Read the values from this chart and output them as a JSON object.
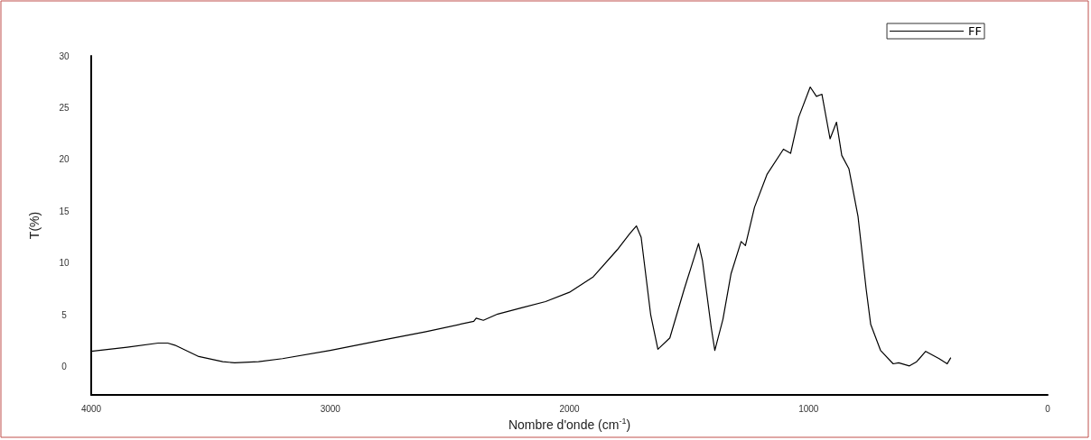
{
  "chart_data": {
    "type": "line",
    "xlabel": "Nombre d'onde (cm$^{-1}$)",
    "ylabel": "T(%)",
    "xlim": [
      4000,
      0
    ],
    "xticks": [
      4000,
      3000,
      2000,
      1000,
      0
    ],
    "ylim": [
      -2.7,
      30
    ],
    "yticks": [
      0,
      5,
      10,
      15,
      20,
      25,
      30
    ],
    "grid": false,
    "legend": "top right",
    "marker": "none",
    "line_style": "solid",
    "series": [
      {
        "name": "FF",
        "color": "#000000",
        "x": [
          4000,
          3850,
          3720,
          3680,
          3650,
          3550,
          3450,
          3400,
          3300,
          3200,
          3000,
          2800,
          2600,
          2400,
          2390,
          2360,
          2300,
          2200,
          2100,
          2000,
          1900,
          1800,
          1750,
          1720,
          1700,
          1660,
          1630,
          1580,
          1520,
          1460,
          1444,
          1407,
          1392,
          1358,
          1324,
          1282,
          1264,
          1226,
          1173,
          1105,
          1075,
          1041,
          993,
          967,
          944,
          910,
          883,
          861,
          831,
          793,
          759,
          740,
          699,
          646,
          623,
          578,
          548,
          510,
          454,
          420,
          405
        ],
        "values": [
          1.5,
          1.9,
          2.3,
          2.3,
          2.1,
          1.0,
          0.5,
          0.4,
          0.5,
          0.8,
          1.6,
          2.5,
          3.4,
          4.4,
          4.7,
          4.5,
          5.1,
          5.7,
          6.3,
          7.2,
          8.7,
          11.3,
          12.8,
          13.6,
          12.5,
          5.0,
          1.7,
          2.8,
          7.5,
          11.9,
          10.3,
          3.8,
          1.6,
          4.6,
          9.0,
          12.1,
          11.7,
          15.4,
          18.6,
          21.0,
          20.6,
          24.1,
          27.0,
          26.1,
          26.3,
          22.0,
          23.6,
          20.4,
          19.1,
          14.5,
          7.5,
          4.1,
          1.6,
          0.3,
          0.4,
          0.1,
          0.5,
          1.5,
          0.8,
          0.3,
          0.9
        ]
      }
    ]
  }
}
